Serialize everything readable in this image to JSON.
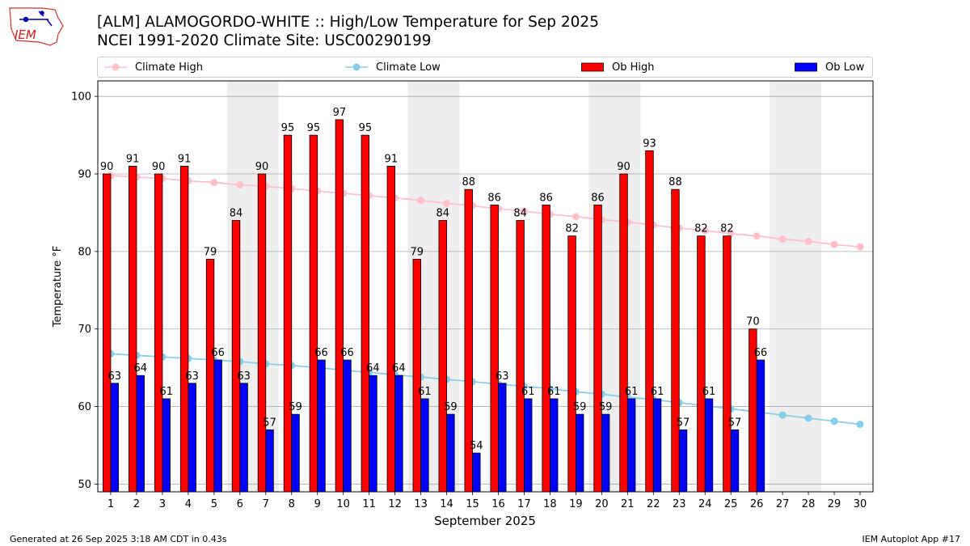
{
  "title_line1": "[ALM] ALAMOGORDO-WHITE :: High/Low Temperature for Sep 2025",
  "title_line2": "NCEI 1991-2020 Climate Site: USC00290199",
  "logo_text": "IEM",
  "footer_left": "Generated at 26 Sep 2025 3:18 AM CDT in 0.43s",
  "footer_right": "IEM Autoplot App #17",
  "colors": {
    "ob_high": "#ff0000",
    "ob_low": "#0000ff",
    "climate_high": "#ffc0cb",
    "climate_low": "#87ceeb",
    "weekend_band": "#eeeeee",
    "grid": "#aaaaaa"
  },
  "chart_data": {
    "type": "bar",
    "xlabel": "September 2025",
    "ylabel": "Temperature °F",
    "ylim": [
      49,
      102
    ],
    "yticks": [
      50,
      60,
      70,
      80,
      90,
      100
    ],
    "grid": "horizontal",
    "legend_position": "top",
    "categories": [
      "1",
      "2",
      "3",
      "4",
      "5",
      "6",
      "7",
      "8",
      "9",
      "10",
      "11",
      "12",
      "13",
      "14",
      "15",
      "16",
      "17",
      "18",
      "19",
      "20",
      "21",
      "22",
      "23",
      "24",
      "25",
      "26",
      "27",
      "28",
      "29",
      "30"
    ],
    "shaded_days": [
      [
        6,
        7
      ],
      [
        13,
        14
      ],
      [
        20,
        21
      ],
      [
        27,
        28
      ]
    ],
    "series": [
      {
        "name": "Climate High",
        "kind": "line",
        "values": [
          89.8,
          89.6,
          89.4,
          89.1,
          88.9,
          88.6,
          88.4,
          88.1,
          87.8,
          87.5,
          87.2,
          86.9,
          86.6,
          86.2,
          85.9,
          85.5,
          85.2,
          84.8,
          84.5,
          84.1,
          83.8,
          83.4,
          83.0,
          82.7,
          82.3,
          82.0,
          81.6,
          81.3,
          80.9,
          80.6
        ]
      },
      {
        "name": "Climate Low",
        "kind": "line",
        "values": [
          66.8,
          66.6,
          66.4,
          66.2,
          66.0,
          65.8,
          65.5,
          65.3,
          65.0,
          64.7,
          64.4,
          64.1,
          63.8,
          63.5,
          63.2,
          62.9,
          62.6,
          62.3,
          61.9,
          61.6,
          61.2,
          60.9,
          60.5,
          60.1,
          59.7,
          59.3,
          58.9,
          58.5,
          58.1,
          57.7
        ]
      },
      {
        "name": "Ob High",
        "kind": "bar",
        "values": [
          90,
          91,
          90,
          91,
          79,
          84,
          90,
          95,
          95,
          97,
          95,
          91,
          79,
          84,
          88,
          86,
          84,
          86,
          82,
          86,
          90,
          93,
          88,
          82,
          82,
          70,
          null,
          null,
          null,
          null
        ]
      },
      {
        "name": "Ob Low",
        "kind": "bar",
        "values": [
          63,
          64,
          61,
          63,
          66,
          63,
          57,
          59,
          66,
          66,
          64,
          64,
          61,
          59,
          54,
          63,
          61,
          61,
          59,
          59,
          61,
          61,
          57,
          61,
          57,
          66,
          null,
          null,
          null,
          null
        ]
      }
    ]
  }
}
